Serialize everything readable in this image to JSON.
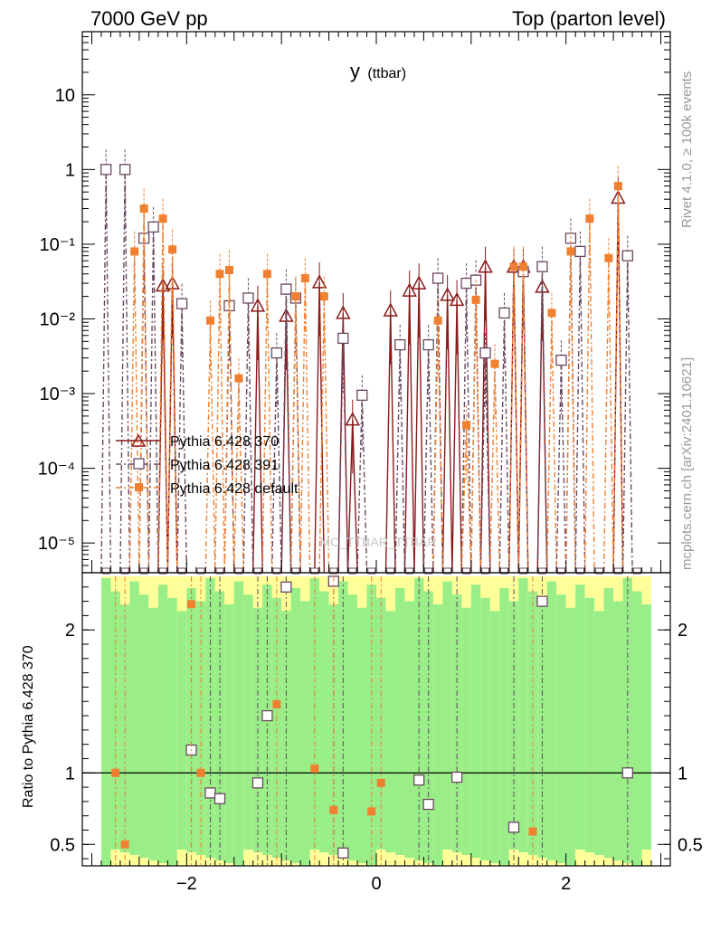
{
  "header": {
    "left": "7000 GeV pp",
    "right": "Top (parton level)"
  },
  "side_labels": {
    "rivet": "Rivet 4.1.0, ≥ 100k events",
    "mcplots": "mcplots.cern.ch [arXiv:2401.10621]"
  },
  "watermark": "MC_TTBAR_TTBAR",
  "colors": {
    "p370": "#8b1a1a",
    "p391": "#6a4860",
    "pdef": "#f08030",
    "band_green": "#99ee88",
    "band_yellow": "#ffff99"
  },
  "chart_data": [
    {
      "type": "line",
      "title": "y (ttbar)",
      "title_main": "y",
      "title_sub": "(ttbar)",
      "xlabel": "",
      "ylabel": "",
      "yscale": "log",
      "xlim": [
        -3.1,
        3.1
      ],
      "ylim": [
        4e-06,
        70
      ],
      "ytick_labels": [
        "10",
        "1",
        "10⁻¹",
        "10⁻²",
        "10⁻³",
        "10⁻⁴",
        "10⁻⁵"
      ],
      "legend_position": "center-left",
      "series": [
        {
          "name": "Pythia 6.428 370",
          "marker": "open-triangle",
          "points": [
            [
              -2.25,
              0.028
            ],
            [
              -2.15,
              0.03
            ],
            [
              -1.25,
              0.015
            ],
            [
              -0.95,
              0.011
            ],
            [
              -0.6,
              0.031
            ],
            [
              -0.35,
              0.012
            ],
            [
              -0.25,
              0.00045
            ],
            [
              0.15,
              0.013
            ],
            [
              0.35,
              0.024
            ],
            [
              0.45,
              0.03
            ],
            [
              0.75,
              0.021
            ],
            [
              0.85,
              0.018
            ],
            [
              1.15,
              0.05
            ],
            [
              1.45,
              0.05
            ],
            [
              1.55,
              0.05
            ],
            [
              1.75,
              0.027
            ],
            [
              2.55,
              0.42
            ]
          ]
        },
        {
          "name": "Pythia 6.428 391",
          "marker": "open-square",
          "points": [
            [
              -2.85,
              1.0
            ],
            [
              -2.65,
              1.0
            ],
            [
              -2.45,
              0.12
            ],
            [
              -2.35,
              0.17
            ],
            [
              -2.05,
              0.016
            ],
            [
              -1.55,
              0.015
            ],
            [
              -1.35,
              0.019
            ],
            [
              -1.05,
              0.0035
            ],
            [
              -0.95,
              0.025
            ],
            [
              -0.85,
              0.019
            ],
            [
              -0.35,
              0.0055
            ],
            [
              -0.15,
              0.00095
            ],
            [
              0.25,
              0.0045
            ],
            [
              0.55,
              0.0045
            ],
            [
              0.65,
              0.035
            ],
            [
              0.95,
              0.03
            ],
            [
              1.05,
              0.033
            ],
            [
              1.15,
              0.0035
            ],
            [
              1.35,
              0.012
            ],
            [
              1.55,
              0.043
            ],
            [
              1.75,
              0.05
            ],
            [
              1.95,
              0.0028
            ],
            [
              2.05,
              0.12
            ],
            [
              2.15,
              0.08
            ],
            [
              2.65,
              0.07
            ]
          ]
        },
        {
          "name": "Pythia 6.428 default",
          "marker": "filled-square",
          "points": [
            [
              -2.55,
              0.08
            ],
            [
              -2.45,
              0.3
            ],
            [
              -2.25,
              0.22
            ],
            [
              -2.15,
              0.085
            ],
            [
              -1.75,
              0.0095
            ],
            [
              -1.65,
              0.04
            ],
            [
              -1.55,
              0.045
            ],
            [
              -1.45,
              0.0016
            ],
            [
              -1.15,
              0.04
            ],
            [
              -0.85,
              0.02
            ],
            [
              -0.75,
              0.035
            ],
            [
              -0.55,
              0.02
            ],
            [
              0.65,
              0.0095
            ],
            [
              0.95,
              0.00038
            ],
            [
              1.05,
              0.018
            ],
            [
              1.25,
              0.0025
            ],
            [
              1.45,
              0.05
            ],
            [
              1.55,
              0.05
            ],
            [
              1.85,
              0.012
            ],
            [
              2.05,
              0.08
            ],
            [
              2.25,
              0.22
            ],
            [
              2.45,
              0.065
            ],
            [
              2.55,
              0.6
            ]
          ]
        }
      ]
    },
    {
      "type": "line",
      "title": "",
      "ylabel": "Ratio to Pythia 6.428 370",
      "xlim": [
        -3.1,
        3.1
      ],
      "ylim": [
        0.35,
        2.4
      ],
      "xtick_labels": [
        "−2",
        "0",
        "2"
      ],
      "ytick_labels": [
        "2",
        "1",
        "0.5"
      ],
      "reference_line": 1.0,
      "series": [
        {
          "name": "Pythia 6.428 391",
          "marker": "open-square",
          "points": [
            [
              -1.95,
              1.16
            ],
            [
              -1.75,
              0.86
            ],
            [
              -1.65,
              0.82
            ],
            [
              -1.25,
              0.93
            ],
            [
              -1.15,
              1.4
            ],
            [
              -0.95,
              2.3
            ],
            [
              -0.45,
              2.34
            ],
            [
              -0.35,
              0.44
            ],
            [
              0.45,
              0.95
            ],
            [
              0.55,
              0.78
            ],
            [
              0.85,
              0.97
            ],
            [
              1.45,
              0.62
            ],
            [
              1.75,
              2.2
            ],
            [
              2.65,
              1.0
            ]
          ]
        },
        {
          "name": "Pythia 6.428 default",
          "marker": "filled-square",
          "points": [
            [
              -2.75,
              1.0
            ],
            [
              -2.65,
              0.5
            ],
            [
              -1.95,
              2.18
            ],
            [
              -1.85,
              1.0
            ],
            [
              -1.05,
              1.48
            ],
            [
              -0.65,
              1.03
            ],
            [
              -0.45,
              0.74
            ],
            [
              -0.05,
              0.73
            ],
            [
              0.05,
              0.93
            ],
            [
              1.65,
              0.59
            ]
          ]
        }
      ]
    }
  ]
}
